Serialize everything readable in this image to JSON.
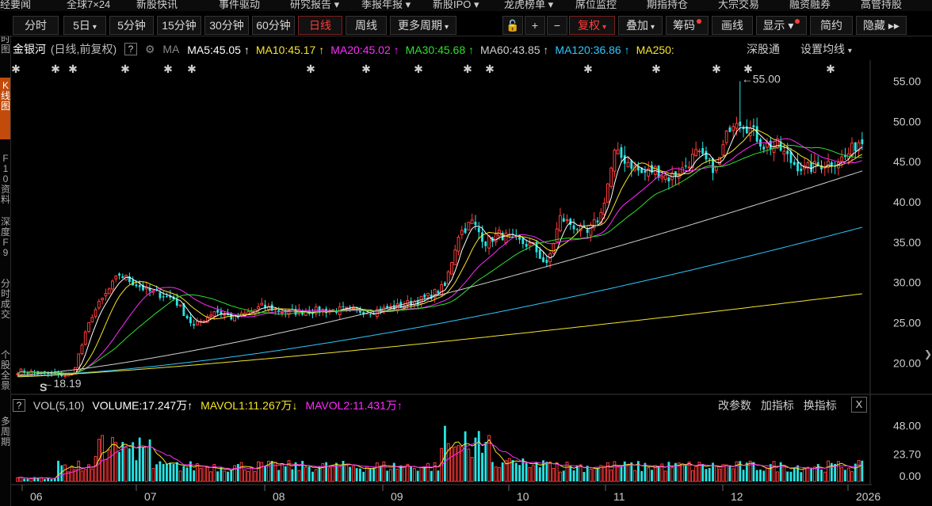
{
  "top_menu": [
    "经要闻",
    "全球7×24",
    "新股快讯",
    "事件驱动",
    "研究报告 ▾",
    "季报年报 ▾",
    "新股IPO ▾",
    "龙虎榜单 ▾",
    "席位监控",
    "期指持仓",
    "大宗交易",
    "融资融券",
    "高管持股"
  ],
  "toolbar": {
    "fenshi": "分时",
    "five_day": "5日",
    "min5": "5分钟",
    "min15": "15分钟",
    "min30": "30分钟",
    "min60": "60分钟",
    "daily": "日线",
    "weekly": "周线",
    "more_periods": "更多周期",
    "adjust": "复权",
    "overlay": "叠加",
    "chips": "筹码",
    "draw": "画线",
    "display": "显示",
    "simple": "简约",
    "hide": "隐藏"
  },
  "left_nav": [
    {
      "text": "分时图",
      "highlight": false
    },
    {
      "text": "K线图",
      "highlight": true
    },
    {
      "text": "F10资料",
      "highlight": false
    },
    {
      "text": "深度F9",
      "highlight": false
    },
    {
      "text": "分时成交",
      "highlight": false
    },
    {
      "text": "个股全景",
      "highlight": false
    },
    {
      "text": "多周期",
      "highlight": false
    }
  ],
  "legend": {
    "stock_name": "金银河",
    "mode": "(日线,前复权)",
    "help": "?",
    "ma_label": "MA",
    "items": [
      {
        "text": "MA5:45.05",
        "color": "#ffffff"
      },
      {
        "text": "MA10:45.17",
        "color": "#f5e52a"
      },
      {
        "text": "MA20:45.02",
        "color": "#ff2bff"
      },
      {
        "text": "MA30:45.68",
        "color": "#2ee02e"
      },
      {
        "text": "MA60:43.85",
        "color": "#d0d0d0"
      },
      {
        "text": "MA120:36.86",
        "color": "#2ec8ff"
      },
      {
        "text": "MA250:",
        "color": "#f5e52a"
      }
    ],
    "overlay_text": "深股通",
    "settings": "设置均线"
  },
  "price_axis": [
    "55.00",
    "50.00",
    "45.00",
    "40.00",
    "35.00",
    "30.00",
    "25.00",
    "20.00"
  ],
  "volume_axis": [
    "48.00",
    "23.70",
    "0.00"
  ],
  "date_axis": [
    "06",
    "07",
    "08",
    "09",
    "10",
    "11",
    "12",
    "2026"
  ],
  "annotations": {
    "high_label": "55.00",
    "low_label": "18.19",
    "s_mark": "S"
  },
  "volume_legend": {
    "help": "?",
    "vol": "VOL(5,10)",
    "volume": "VOLUME:17.247万",
    "mavol1": "MAVOL1:11.267万",
    "mavol2": "MAVOL2:11.431万",
    "change_params": "改参数",
    "add_indicator": "加指标",
    "switch_indicator": "换指标",
    "close": "X"
  },
  "colors": {
    "up": "#ff3b3b",
    "down": "#27e5e5",
    "ma5": "#ffffff",
    "ma10": "#f5e52a",
    "ma20": "#ff2bff",
    "ma30": "#2ee02e",
    "ma60": "#d0d0d0",
    "ma120": "#2ec8ff",
    "ma250": "#f5e52a"
  },
  "chart_data": {
    "type": "candlestick",
    "price_range": [
      16.9,
      57.6
    ],
    "volume_range": [
      0,
      56
    ],
    "high": 55.0,
    "low": 18.19,
    "anchors": [
      [
        0,
        19.0
      ],
      [
        10,
        18.6
      ],
      [
        16,
        18.5
      ],
      [
        22,
        26.0
      ],
      [
        30,
        31.0
      ],
      [
        38,
        29.0
      ],
      [
        46,
        28.0
      ],
      [
        52,
        24.5
      ],
      [
        58,
        26.5
      ],
      [
        64,
        25.5
      ],
      [
        72,
        27.0
      ],
      [
        80,
        26.3
      ],
      [
        88,
        26.5
      ],
      [
        96,
        26.6
      ],
      [
        104,
        26.4
      ],
      [
        112,
        27.0
      ],
      [
        120,
        28.0
      ],
      [
        126,
        29.5
      ],
      [
        130,
        36.0
      ],
      [
        134,
        37.5
      ],
      [
        138,
        35.0
      ],
      [
        142,
        36.0
      ],
      [
        148,
        35.0
      ],
      [
        152,
        34.5
      ],
      [
        156,
        32.0
      ],
      [
        160,
        38.0
      ],
      [
        164,
        37.0
      ],
      [
        168,
        36.0
      ],
      [
        172,
        38.5
      ],
      [
        176,
        46.0
      ],
      [
        180,
        45.0
      ],
      [
        184,
        43.5
      ],
      [
        188,
        44.0
      ],
      [
        192,
        43.0
      ],
      [
        196,
        44.0
      ],
      [
        200,
        46.0
      ],
      [
        206,
        44.0
      ],
      [
        210,
        49.5
      ],
      [
        212,
        50.5
      ],
      [
        216,
        49.0
      ],
      [
        220,
        47.0
      ],
      [
        224,
        47.0
      ],
      [
        228,
        45.0
      ],
      [
        232,
        44.0
      ],
      [
        236,
        44.5
      ],
      [
        240,
        45.0
      ],
      [
        244,
        45.5
      ],
      [
        248,
        47.5
      ]
    ],
    "ma_final": {
      "ma60": 43.85,
      "ma120": 36.86,
      "ma250": 28.6
    }
  }
}
